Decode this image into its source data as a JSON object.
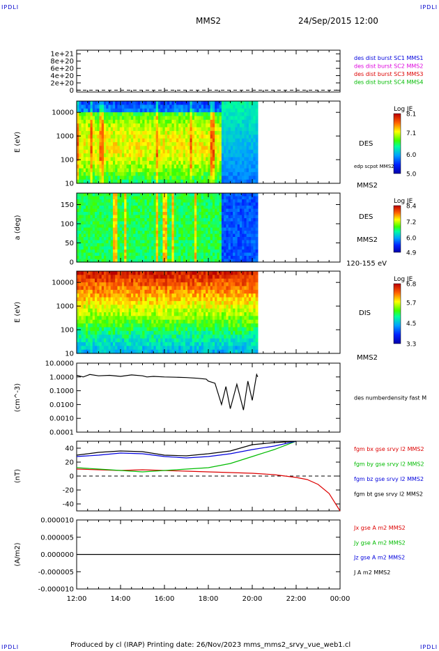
{
  "header": {
    "corner_tl": "IPDLI",
    "corner_tr": "IPDLI",
    "corner_bl": "IPDLI",
    "corner_br": "IPDLI",
    "spacecraft": "MMS2",
    "datetime": "24/Sep/2015 12:00"
  },
  "footer": {
    "text": "Produced by cl (IRAP)   Printing date: 26/Nov/2023   mms_mms2_srvy_vue_web1.cl"
  },
  "time_axis": {
    "labels": [
      "12:00",
      "14:00",
      "16:00",
      "18:00",
      "20:00",
      "22:00",
      "00:00"
    ],
    "hours": [
      0,
      2,
      4,
      6,
      8,
      10,
      12
    ]
  },
  "chart_data": [
    {
      "id": "panel1",
      "type": "line",
      "title": "",
      "ylabel": "",
      "yticks": [
        "1e+21",
        "8e+20",
        "6e+20",
        "4e+20",
        "2e+20",
        "0"
      ],
      "ytick_values": [
        1e+21,
        8e+20,
        6e+20,
        4e+20,
        2e+20,
        0
      ],
      "ylim": [
        -5e+19,
        1.1e+21
      ],
      "reference_line": 0,
      "legend": [
        {
          "label": "des dist burst SC1 MMS1",
          "color": "#0000dd"
        },
        {
          "label": "des dist burst SC2 MMS2",
          "color": "#dd00dd"
        },
        {
          "label": "des dist burst SC3 MMS3",
          "color": "#dd0000"
        },
        {
          "label": "des dist burst SC4 MMS4",
          "color": "#00bb00"
        }
      ],
      "series": []
    },
    {
      "id": "panel2",
      "type": "heatmap",
      "ylabel": "E (eV)",
      "yscale": "log",
      "yticks": [
        "10000",
        "1000",
        "100",
        "10"
      ],
      "ytick_values": [
        10000,
        1000,
        100,
        10
      ],
      "ylim": [
        10,
        30000
      ],
      "data_end_hour": 8.25,
      "colorbar": {
        "title": "Log JE",
        "ticks": [
          "8.1",
          "7.1",
          "6.0",
          "5.0"
        ],
        "min": 5.0,
        "max": 8.1
      },
      "labels": [
        "DES",
        "edp scpot MMS2",
        "MMS2"
      ]
    },
    {
      "id": "panel3",
      "type": "heatmap",
      "ylabel": "a (deg)",
      "yticks": [
        "150",
        "100",
        "50",
        "0"
      ],
      "ytick_values": [
        150,
        100,
        50,
        0
      ],
      "ylim": [
        0,
        180
      ],
      "data_end_hour": 8.25,
      "colorbar": {
        "title": "Log JE",
        "ticks": [
          "8.4",
          "7.2",
          "6.0",
          "4.9"
        ],
        "min": 4.9,
        "max": 8.4
      },
      "labels": [
        "DES",
        "MMS2",
        "120-155 eV"
      ]
    },
    {
      "id": "panel4",
      "type": "heatmap",
      "ylabel": "E (eV)",
      "yscale": "log",
      "yticks": [
        "10000",
        "1000",
        "100",
        "10"
      ],
      "ytick_values": [
        10000,
        1000,
        100,
        10
      ],
      "ylim": [
        10,
        30000
      ],
      "data_end_hour": 8.25,
      "colorbar": {
        "title": "Log JE",
        "ticks": [
          "6.8",
          "5.7",
          "4.5",
          "3.3"
        ],
        "min": 3.3,
        "max": 6.8
      },
      "labels": [
        "DIS",
        "MMS2"
      ]
    },
    {
      "id": "panel5",
      "type": "line",
      "ylabel": "(cm^-3)",
      "yscale": "log",
      "yticks": [
        "10.0000",
        "1.0000",
        "0.1000",
        "0.0100",
        "0.0010",
        "0.0001"
      ],
      "ytick_values": [
        10,
        1,
        0.1,
        0.01,
        0.001,
        0.0001
      ],
      "ylim": [
        0.0001,
        10
      ],
      "legend": [
        {
          "label": "des numberdensity fast M",
          "color": "#000000"
        }
      ],
      "series": [
        {
          "name": "des numberdensity fast M",
          "color": "#000000",
          "x": [
            0,
            0.3,
            0.6,
            1.0,
            1.5,
            2.0,
            2.5,
            3.0,
            3.2,
            3.5,
            4.0,
            4.5,
            5.0,
            5.5,
            5.9,
            6.0,
            6.3,
            6.6,
            6.8,
            7.0,
            7.3,
            7.6,
            7.8,
            8.0,
            8.2,
            8.25
          ],
          "y": [
            1.3,
            1.0,
            1.5,
            1.2,
            1.3,
            1.1,
            1.4,
            1.2,
            1.0,
            1.1,
            1.0,
            0.95,
            0.9,
            0.8,
            0.7,
            0.5,
            0.35,
            0.01,
            0.2,
            0.005,
            0.3,
            0.004,
            0.5,
            0.02,
            1.5,
            1.0
          ]
        }
      ]
    },
    {
      "id": "panel6",
      "type": "line",
      "ylabel": "(nT)",
      "yticks": [
        "40",
        "20",
        "0",
        "-20",
        "-40"
      ],
      "ytick_values": [
        40,
        20,
        0,
        -20,
        -40
      ],
      "ylim": [
        -50,
        50
      ],
      "reference_line": 0,
      "legend": [
        {
          "label": "fgm bx gse srvy l2 MMS2",
          "color": "#dd0000"
        },
        {
          "label": "fgm by gse srvy l2 MMS2",
          "color": "#00bb00"
        },
        {
          "label": "fgm bz gse srvy l2 MMS2",
          "color": "#0000dd"
        },
        {
          "label": "fgm bt gse srvy l2 MMS2",
          "color": "#000000"
        }
      ],
      "series": [
        {
          "name": "fgm bx gse srvy l2 MMS2",
          "color": "#dd0000",
          "x": [
            0,
            1,
            2,
            3,
            4,
            5,
            6,
            7,
            8,
            9,
            10,
            10.5,
            11,
            11.5,
            12
          ],
          "y": [
            10,
            9,
            8,
            9,
            8,
            7,
            6,
            5,
            4,
            2,
            -2,
            -5,
            -12,
            -25,
            -50
          ]
        },
        {
          "name": "fgm by gse srvy l2 MMS2",
          "color": "#00bb00",
          "x": [
            0,
            1,
            2,
            3,
            4,
            5,
            6,
            7,
            8,
            9,
            10
          ],
          "y": [
            12,
            10,
            8,
            6,
            8,
            10,
            12,
            18,
            28,
            38,
            50
          ]
        },
        {
          "name": "fgm bz gse srvy l2 MMS2",
          "color": "#0000dd",
          "x": [
            0,
            1,
            2,
            3,
            4,
            5,
            6,
            7,
            8,
            9,
            10
          ],
          "y": [
            28,
            30,
            33,
            32,
            28,
            26,
            28,
            32,
            38,
            43,
            50
          ]
        },
        {
          "name": "fgm bt gse srvy l2 MMS2",
          "color": "#000000",
          "x": [
            0,
            1,
            2,
            3,
            4,
            5,
            6,
            7,
            8,
            9,
            10
          ],
          "y": [
            30,
            34,
            36,
            35,
            30,
            29,
            32,
            36,
            45,
            48,
            50
          ]
        }
      ]
    },
    {
      "id": "panel7",
      "type": "line",
      "ylabel": "(A/m2)",
      "yticks": [
        "0.000010",
        "0.000005",
        "0.000000",
        "-0.000005",
        "-0.000010"
      ],
      "ytick_values": [
        1e-05,
        5e-06,
        0,
        -5e-06,
        -1e-05
      ],
      "ylim": [
        -1e-05,
        1e-05
      ],
      "legend": [
        {
          "label": "Jx gse A m2 MMS2",
          "color": "#dd0000"
        },
        {
          "label": "Jy gse A m2 MMS2",
          "color": "#00bb00"
        },
        {
          "label": "Jz gse A m2 MMS2",
          "color": "#0000dd"
        },
        {
          "label": "J A m2 MMS2",
          "color": "#000000"
        }
      ],
      "series": [
        {
          "name": "J A m2 MMS2",
          "color": "#000000",
          "x": [
            0,
            2,
            4,
            6,
            8,
            10,
            12
          ],
          "y": [
            0,
            0,
            0,
            0,
            0,
            0,
            0
          ]
        }
      ]
    }
  ]
}
